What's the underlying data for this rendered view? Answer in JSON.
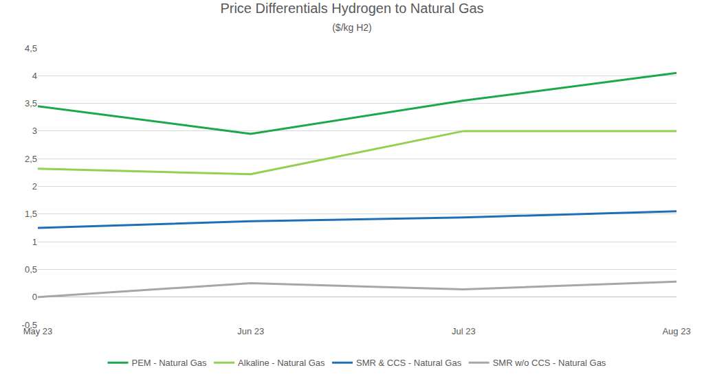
{
  "chart_data": {
    "type": "line",
    "title": "Price Differentials Hydrogen to Natural Gas",
    "subtitle": "($/kg H2)",
    "categories": [
      "May 23",
      "Jun 23",
      "Jul 23",
      "Aug 23"
    ],
    "series": [
      {
        "name": "PEM - Natural Gas",
        "color": "#1aa84a",
        "values": [
          3.45,
          2.95,
          3.55,
          4.05
        ]
      },
      {
        "name": "Alkaline - Natural Gas",
        "color": "#92d050",
        "values": [
          2.32,
          2.22,
          3.0,
          3.0
        ]
      },
      {
        "name": "SMR & CCS - Natural Gas",
        "color": "#1f6fb8",
        "values": [
          1.25,
          1.37,
          1.44,
          1.55
        ]
      },
      {
        "name": "SMR w/o CCS - Natural Gas",
        "color": "#a6a6a6",
        "values": [
          0.0,
          0.25,
          0.14,
          0.28
        ]
      }
    ],
    "ylim": [
      -0.5,
      4.5
    ],
    "yticks": [
      {
        "value": -0.5,
        "label": "-0,5"
      },
      0,
      {
        "value": 0.5,
        "label": "0,5"
      },
      1,
      {
        "value": 1.5,
        "label": "1,5"
      },
      2,
      {
        "value": 2.5,
        "label": "2,5"
      },
      3,
      {
        "value": 3.5,
        "label": "3,5"
      },
      4,
      {
        "value": 4.5,
        "label": "4,5"
      }
    ],
    "grid": true,
    "legend": "bottom"
  }
}
